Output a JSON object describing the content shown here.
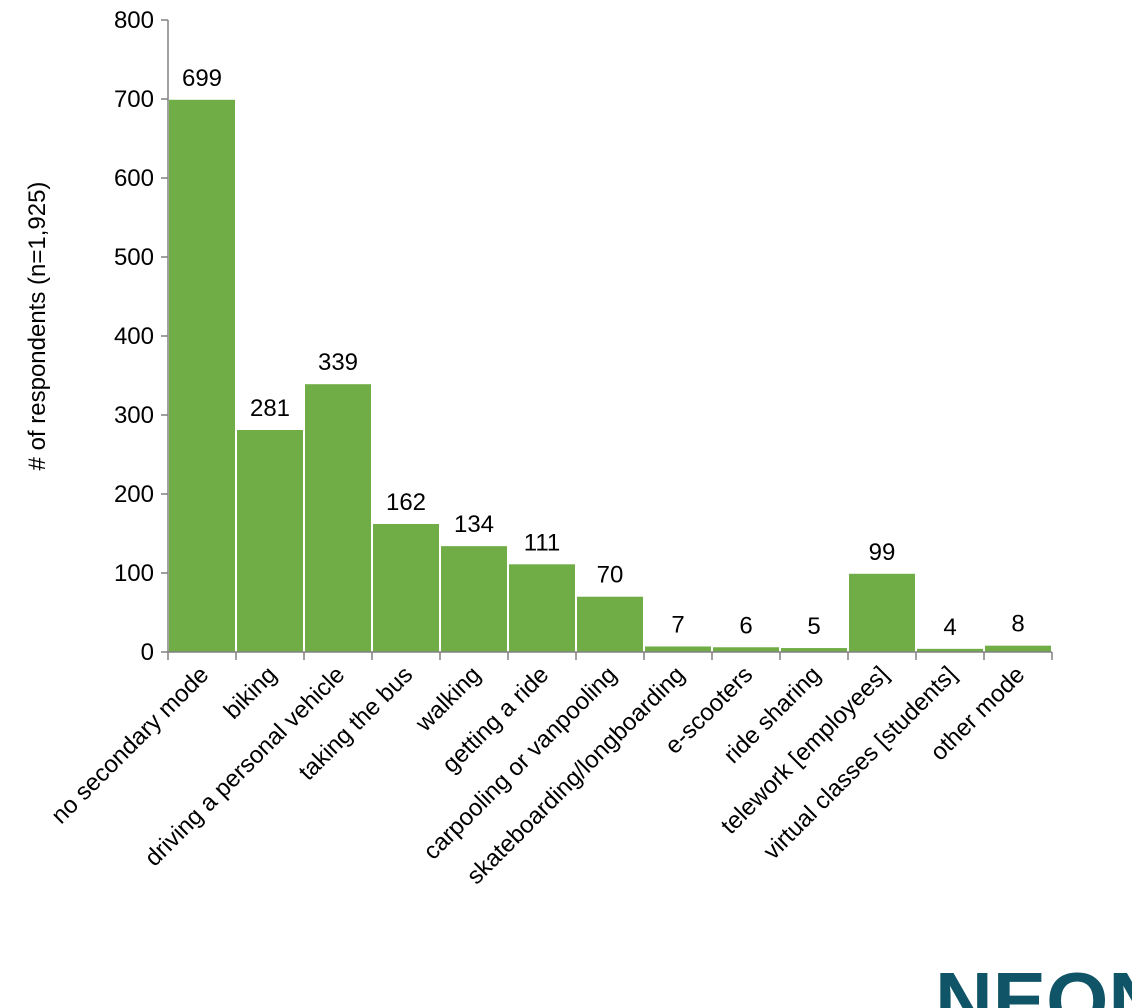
{
  "chart_data": {
    "type": "bar",
    "title": "",
    "xlabel": "",
    "ylabel": "# of respondents (n=1,925)",
    "ylim": [
      0,
      800
    ],
    "yticks": [
      0,
      100,
      200,
      300,
      400,
      500,
      600,
      700,
      800
    ],
    "grid": false,
    "categories": [
      "no secondary mode",
      "biking",
      "driving a personal vehicle",
      "taking the bus",
      "walking",
      "getting a ride",
      "carpooling or vanpooling",
      "skateboarding/longboarding",
      "e-scooters",
      "ride sharing",
      "telework [employees]",
      "virtual classes [students]",
      "other mode"
    ],
    "values": [
      699,
      281,
      339,
      162,
      134,
      111,
      70,
      7,
      6,
      5,
      99,
      4,
      8
    ],
    "bar_color": "#70ad47",
    "logo": {
      "text": "NEON",
      "color": "#0f5467"
    }
  }
}
